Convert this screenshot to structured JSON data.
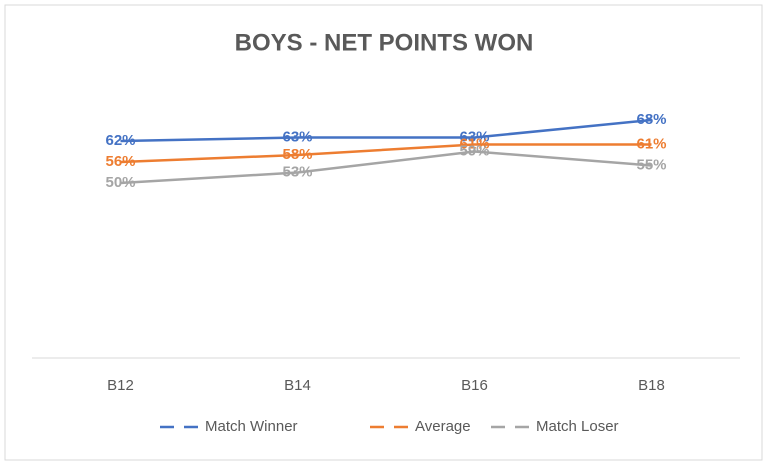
{
  "chart_data": {
    "type": "line",
    "title": "BOYS - NET POINTS WON",
    "categories": [
      "B12",
      "B14",
      "B16",
      "B18"
    ],
    "series": [
      {
        "name": "Match Winner",
        "color": "#4472c4",
        "values": [
          62,
          63,
          63,
          68
        ],
        "value_labels": [
          "62%",
          "63%",
          "63%",
          "68%"
        ]
      },
      {
        "name": "Average",
        "color": "#ed7d31",
        "values": [
          56,
          58,
          61,
          61
        ],
        "value_labels": [
          "56%",
          "58%",
          "61%",
          "61%"
        ]
      },
      {
        "name": "Match Loser",
        "color": "#a5a5a5",
        "values": [
          50,
          53,
          59,
          55
        ],
        "value_labels": [
          "50%",
          "53%",
          "59%",
          "55%"
        ]
      }
    ],
    "ylim": [
      0,
      80
    ],
    "legend": "bottom"
  }
}
